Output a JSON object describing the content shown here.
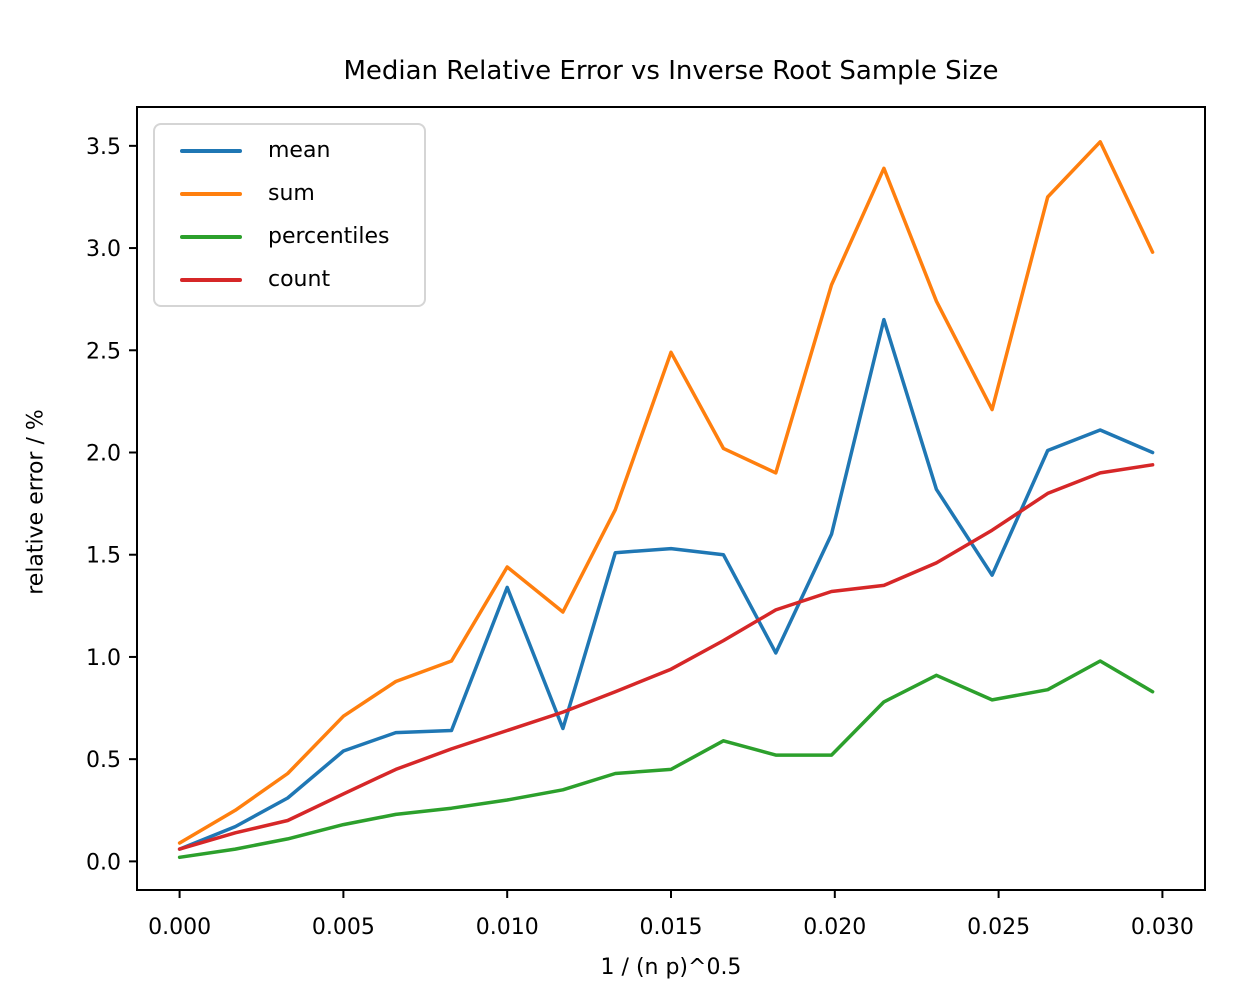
{
  "chart_data": {
    "type": "line",
    "title": "Median Relative Error vs Inverse Root Sample Size",
    "xlabel": "1 / (n p)^0.5",
    "ylabel": "relative error / %",
    "x": [
      0.0,
      0.0017,
      0.0033,
      0.005,
      0.0066,
      0.0083,
      0.01,
      0.0117,
      0.0133,
      0.015,
      0.0166,
      0.0182,
      0.0199,
      0.0215,
      0.0231,
      0.0248,
      0.0265,
      0.0281,
      0.0297
    ],
    "series": [
      {
        "name": "mean",
        "color": "#1f77b4",
        "values": [
          0.06,
          0.17,
          0.31,
          0.54,
          0.63,
          0.64,
          1.34,
          0.65,
          1.51,
          1.53,
          1.5,
          1.02,
          1.6,
          2.65,
          1.82,
          1.4,
          2.01,
          2.11,
          2.0
        ]
      },
      {
        "name": "sum",
        "color": "#ff7f0e",
        "values": [
          0.09,
          0.25,
          0.43,
          0.71,
          0.88,
          0.98,
          1.44,
          1.22,
          1.72,
          2.49,
          2.02,
          1.9,
          2.82,
          3.39,
          2.74,
          2.21,
          3.25,
          3.52,
          2.98
        ]
      },
      {
        "name": "percentiles",
        "color": "#2ca02c",
        "values": [
          0.02,
          0.06,
          0.11,
          0.18,
          0.23,
          0.26,
          0.3,
          0.35,
          0.43,
          0.45,
          0.59,
          0.52,
          0.52,
          0.78,
          0.91,
          0.79,
          0.84,
          0.98,
          0.83
        ]
      },
      {
        "name": "count",
        "color": "#d62728",
        "values": [
          0.06,
          0.14,
          0.2,
          0.33,
          0.45,
          0.55,
          0.64,
          0.73,
          0.83,
          0.94,
          1.08,
          1.23,
          1.32,
          1.35,
          1.46,
          1.62,
          1.8,
          1.9,
          1.94
        ]
      }
    ],
    "xticks": [
      0.0,
      0.005,
      0.01,
      0.015,
      0.02,
      0.025,
      0.03
    ],
    "xtick_labels": [
      "0.000",
      "0.005",
      "0.010",
      "0.015",
      "0.020",
      "0.025",
      "0.030"
    ],
    "yticks": [
      0.0,
      0.5,
      1.0,
      1.5,
      2.0,
      2.5,
      3.0,
      3.5
    ],
    "ytick_labels": [
      "0.0",
      "0.5",
      "1.0",
      "1.5",
      "2.0",
      "2.5",
      "3.0",
      "3.5"
    ],
    "xlim": [
      -0.0013,
      0.0313
    ],
    "ylim": [
      -0.14,
      3.69
    ],
    "grid": false,
    "legend": {
      "position": "upper left",
      "entries": [
        "mean",
        "sum",
        "percentiles",
        "count"
      ]
    },
    "frame_color": "#000000",
    "text_color": "#000000"
  }
}
